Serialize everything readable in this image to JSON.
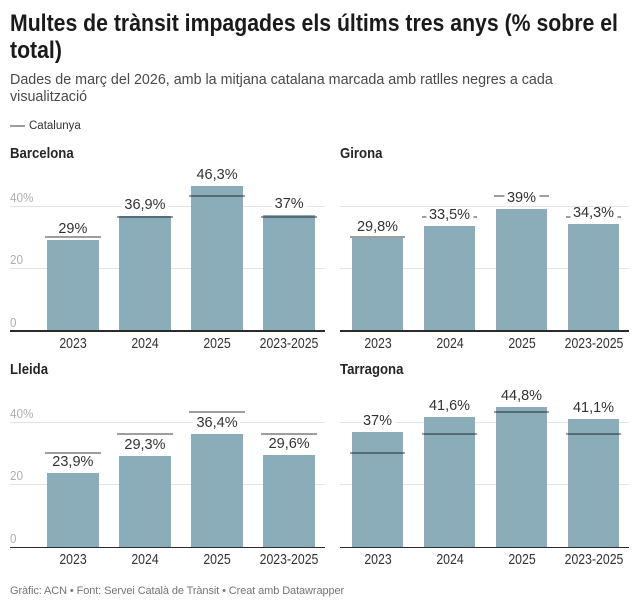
{
  "title": "Multes de trànsit impagades els últims tres anys (% sobre el total)",
  "subtitle": "Dades de març del 2026, amb la mitjana catalana marcada amb ratlles negres a cada visualització",
  "legend": {
    "label": "Catalunya"
  },
  "footer": "Gràfic: ACN • Font: Servei Català de Trànsit • Creat amb Datawrapper",
  "colors": {
    "bar": "#8badba",
    "reference_line": "rgba(0,0,0,0.38)",
    "axis_line": "#2b2b2b",
    "gridline": "#e4e4e4"
  },
  "chart_data": {
    "type": "bar",
    "categories": [
      "2023",
      "2024",
      "2025",
      "2023-2025"
    ],
    "y_ticks": [
      {
        "value": 0,
        "label": "0"
      },
      {
        "value": 20,
        "label": "20"
      },
      {
        "value": 40,
        "label": "40%"
      }
    ],
    "ylim": [
      0,
      53
    ],
    "grid": true,
    "legend_position": "top-left",
    "panels": [
      {
        "name": "Barcelona",
        "values": [
          29,
          36.9,
          46.3,
          37
        ],
        "labels": [
          "29%",
          "36,9%",
          "46,3%",
          "37%"
        ]
      },
      {
        "name": "Girona",
        "values": [
          29.8,
          33.5,
          39,
          34.3
        ],
        "labels": [
          "29,8%",
          "33,5%",
          "39%",
          "34,3%"
        ]
      },
      {
        "name": "Lleida",
        "values": [
          23.9,
          29.3,
          36.4,
          29.6
        ],
        "labels": [
          "23,9%",
          "29,3%",
          "36,4%",
          "29,6%"
        ]
      },
      {
        "name": "Tarragona",
        "values": [
          37,
          41.6,
          44.8,
          41.1
        ],
        "labels": [
          "37%",
          "41,6%",
          "44,8%",
          "41,1%"
        ]
      }
    ],
    "reference_series": {
      "name": "Catalunya",
      "values": [
        30.1,
        36.4,
        43.3,
        36.4
      ]
    }
  }
}
